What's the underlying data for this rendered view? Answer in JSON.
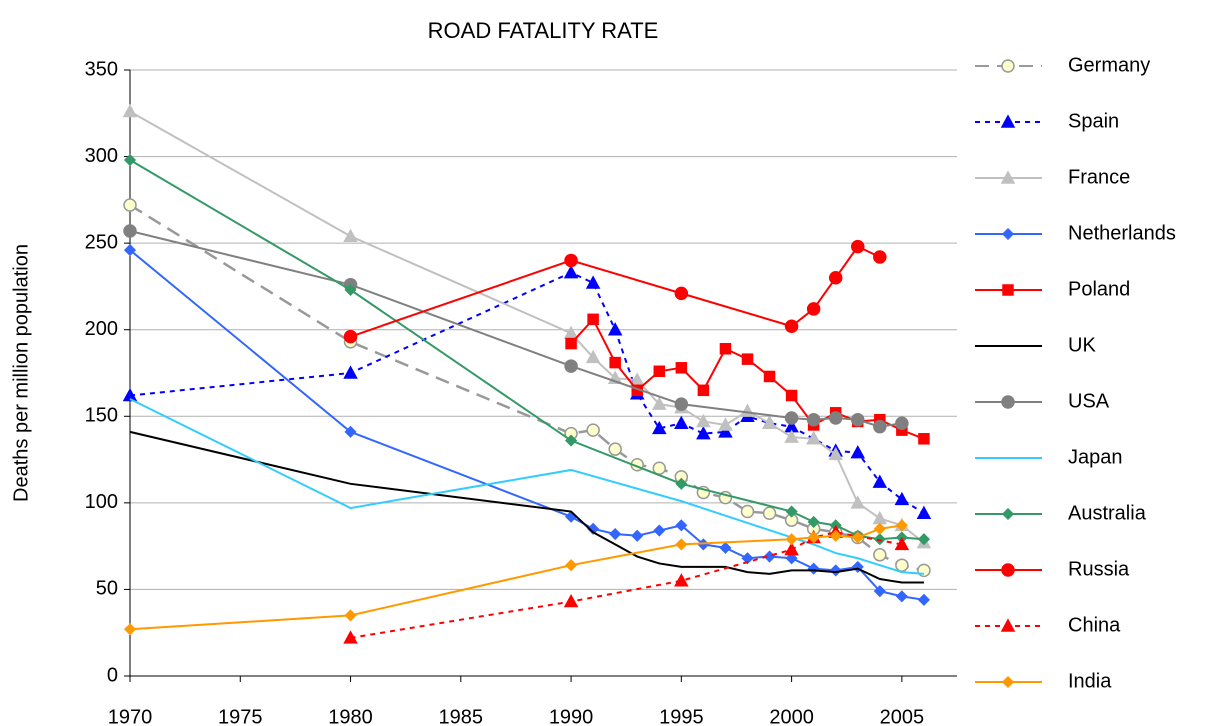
{
  "chart_data": {
    "type": "line",
    "title": "ROAD FATALITY RATE",
    "y_label": "Deaths per million population",
    "xlim": [
      1970,
      2007.5
    ],
    "xticks": [
      1970,
      1975,
      1980,
      1985,
      1990,
      1995,
      2000,
      2005
    ],
    "ylim": [
      0,
      350
    ],
    "yticks": [
      0,
      50,
      100,
      150,
      200,
      250,
      300,
      350
    ],
    "grid": true,
    "legend": "right",
    "series": [
      {
        "name": "Germany",
        "color": "#999999",
        "marker": "circle",
        "marker_fill": "#ffffcc",
        "dash": "dashed",
        "x": [
          1970,
          1980,
          1990,
          1991,
          1992,
          1993,
          1994,
          1995,
          1996,
          1997,
          1998,
          1999,
          2000,
          2001,
          2002,
          2003,
          2004,
          2005,
          2006
        ],
        "values": [
          272,
          193,
          140,
          142,
          131,
          122,
          120,
          115,
          106,
          103,
          95,
          94,
          90,
          85,
          83,
          80,
          70,
          64,
          61
        ]
      },
      {
        "name": "Spain",
        "color": "#0000ff",
        "marker": "triangle",
        "marker_fill": "#0000ff",
        "dash": "dotted",
        "x": [
          1970,
          1980,
          1990,
          1991,
          1992,
          1993,
          1994,
          1995,
          1996,
          1997,
          1998,
          1999,
          2000,
          2001,
          2002,
          2003,
          2004,
          2005,
          2006
        ],
        "values": [
          162,
          175,
          233,
          227,
          200,
          163,
          143,
          146,
          140,
          141,
          150,
          146,
          144,
          137,
          130,
          129,
          112,
          102,
          94
        ]
      },
      {
        "name": "France",
        "color": "#c0c0c0",
        "marker": "triangle",
        "marker_fill": "#c0c0c0",
        "dash": "solid",
        "x": [
          1970,
          1980,
          1990,
          1991,
          1992,
          1993,
          1994,
          1995,
          1996,
          1997,
          1998,
          1999,
          2000,
          2001,
          2002,
          2003,
          2004,
          2005,
          2006
        ],
        "values": [
          326,
          254,
          198,
          184,
          172,
          171,
          157,
          155,
          147,
          145,
          153,
          146,
          138,
          137,
          128,
          100,
          91,
          87,
          77
        ]
      },
      {
        "name": "Netherlands",
        "color": "#3366ff",
        "marker": "diamond",
        "marker_fill": "#3366ff",
        "dash": "solid",
        "x": [
          1970,
          1980,
          1990,
          1991,
          1992,
          1993,
          1994,
          1995,
          1996,
          1997,
          1998,
          1999,
          2000,
          2001,
          2002,
          2003,
          2004,
          2005,
          2006
        ],
        "values": [
          246,
          141,
          92,
          85,
          82,
          81,
          84,
          87,
          76,
          74,
          68,
          69,
          68,
          62,
          61,
          63,
          49,
          46,
          44
        ]
      },
      {
        "name": "Poland",
        "color": "#ff0000",
        "marker": "square",
        "marker_fill": "#ff0000",
        "dash": "solid",
        "x": [
          1990,
          1991,
          1992,
          1993,
          1994,
          1995,
          1996,
          1997,
          1998,
          1999,
          2000,
          2001,
          2002,
          2003,
          2004,
          2005,
          2006
        ],
        "values": [
          192,
          206,
          181,
          165,
          176,
          178,
          165,
          189,
          183,
          173,
          162,
          145,
          152,
          147,
          148,
          142,
          137
        ]
      },
      {
        "name": "UK",
        "color": "#000000",
        "marker": "none",
        "marker_fill": "#000000",
        "dash": "solid",
        "x": [
          1970,
          1980,
          1990,
          1991,
          1992,
          1993,
          1994,
          1995,
          1996,
          1997,
          1998,
          1999,
          2000,
          2001,
          2002,
          2003,
          2004,
          2005,
          2006
        ],
        "values": [
          141,
          111,
          95,
          83,
          76,
          69,
          65,
          63,
          63,
          63,
          60,
          59,
          61,
          61,
          60,
          62,
          56,
          54,
          54
        ]
      },
      {
        "name": "USA",
        "color": "#808080",
        "marker": "circle",
        "marker_fill": "#808080",
        "dash": "solid",
        "x": [
          1970,
          1980,
          1990,
          1995,
          2000,
          2001,
          2002,
          2003,
          2004,
          2005
        ],
        "values": [
          257,
          226,
          179,
          157,
          149,
          148,
          149,
          148,
          144,
          146
        ]
      },
      {
        "name": "Japan",
        "color": "#33ccff",
        "marker": "none",
        "marker_fill": "#33ccff",
        "dash": "solid",
        "x": [
          1970,
          1980,
          1990,
          1995,
          2000,
          2001,
          2002,
          2003,
          2004,
          2005,
          2006
        ],
        "values": [
          160,
          97,
          119,
          101,
          80,
          76,
          71,
          68,
          64,
          60,
          59
        ]
      },
      {
        "name": "Australia",
        "color": "#339966",
        "marker": "diamond",
        "marker_fill": "#339966",
        "dash": "solid",
        "x": [
          1970,
          1980,
          1990,
          1995,
          2000,
          2001,
          2002,
          2003,
          2004,
          2005,
          2006
        ],
        "values": [
          298,
          223,
          136,
          111,
          95,
          89,
          87,
          81,
          79,
          80,
          79
        ]
      },
      {
        "name": "Russia",
        "color": "#ff0000",
        "marker": "circle",
        "marker_fill": "#ff0000",
        "dash": "solid",
        "x": [
          1980,
          1990,
          1995,
          2000,
          2001,
          2002,
          2003,
          2004
        ],
        "values": [
          196,
          240,
          221,
          202,
          212,
          230,
          248,
          242
        ]
      },
      {
        "name": "China",
        "color": "#ff0000",
        "marker": "triangle",
        "marker_fill": "#ff0000",
        "dash": "dotted",
        "x": [
          1980,
          1990,
          1995,
          2000,
          2001,
          2002,
          2005
        ],
        "values": [
          22,
          43,
          55,
          73,
          80,
          83,
          76
        ]
      },
      {
        "name": "India",
        "color": "#ff9900",
        "marker": "diamond",
        "marker_fill": "#ff9900",
        "dash": "solid",
        "x": [
          1970,
          1980,
          1990,
          1995,
          2000,
          2001,
          2002,
          2003,
          2004,
          2005
        ],
        "values": [
          27,
          35,
          64,
          76,
          79,
          80,
          81,
          80,
          85,
          87
        ]
      }
    ]
  }
}
